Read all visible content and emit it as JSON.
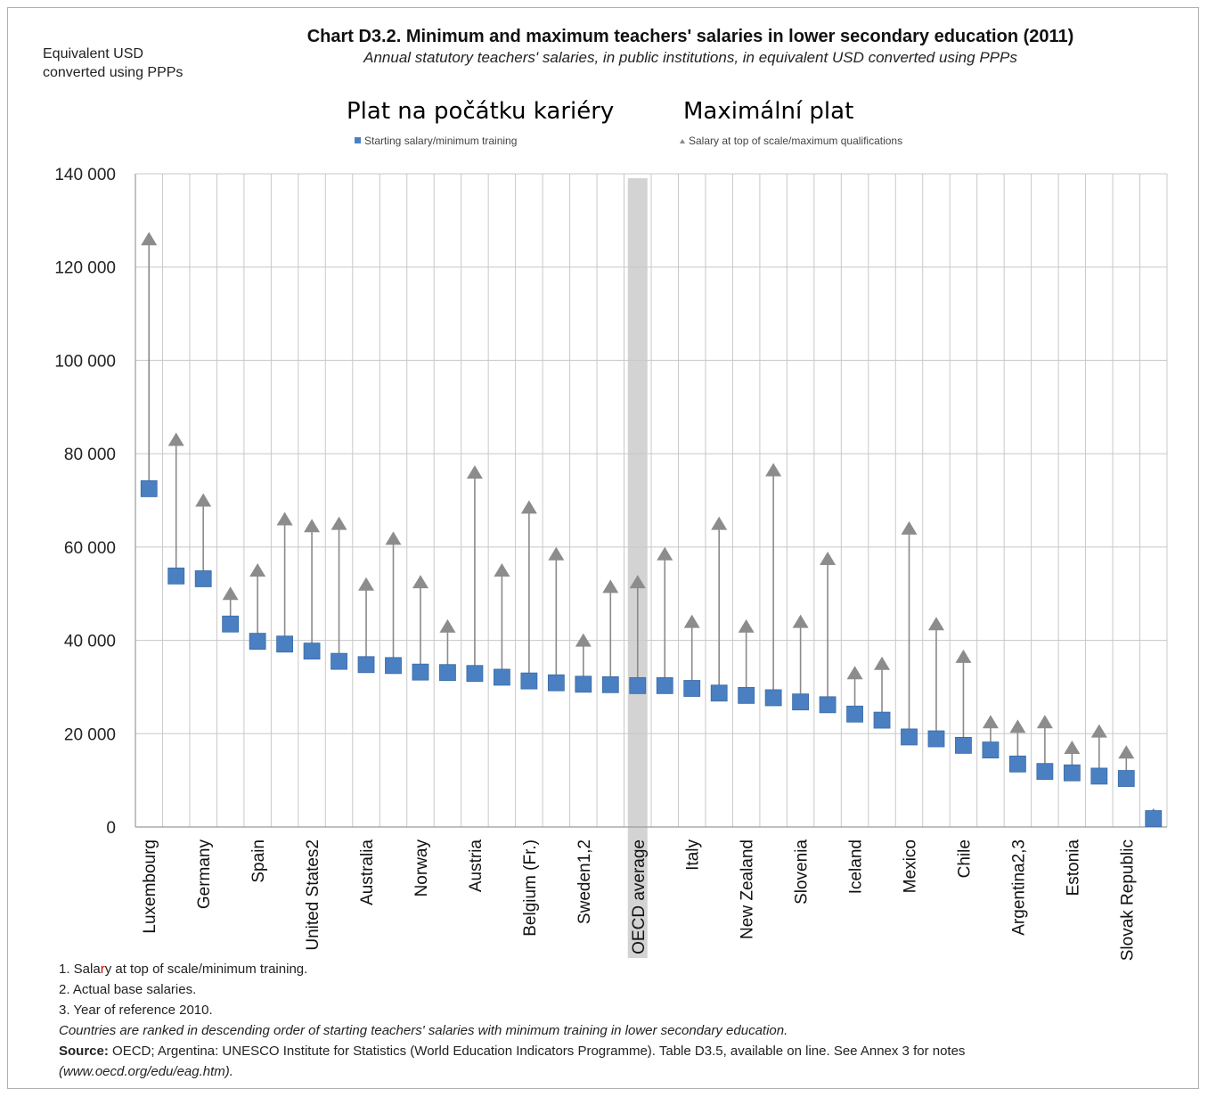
{
  "chart_data": {
    "type": "scatter",
    "title": "Chart D3.2.  Minimum and maximum teachers' salaries in lower secondary education (2011)",
    "subtitle": "Annual statutory teachers' salaries, in public institutions, in equivalent USD converted using PPPs",
    "ylabel": "Equivalent  USD converted using PPPs",
    "annotation_left": "Plat na počátku kariéry",
    "annotation_right": "Maximální plat",
    "ylim": [
      0,
      140000
    ],
    "yticks": [
      "0",
      "20 000",
      "40 000",
      "60 000",
      "80 000",
      "100 000",
      "120 000",
      "140 000"
    ],
    "ytick_values": [
      0,
      20000,
      40000,
      60000,
      80000,
      100000,
      120000,
      140000
    ],
    "grid": true,
    "legend_placement": "top",
    "highlight_category": "OECD average",
    "highlight_color": "#d3d3d3",
    "categories": [
      "Luxembourg",
      "",
      "Germany",
      "",
      "Spain",
      "",
      "United States2",
      "",
      "Australia",
      "",
      "Norway",
      "",
      "Austria",
      "",
      "Belgium (Fr.)",
      "",
      "Sweden1,2",
      "",
      "OECD average",
      "",
      "Italy",
      "",
      "New Zealand",
      "",
      "Slovenia",
      "",
      "Iceland",
      "",
      "Mexico",
      "",
      "Chile",
      "",
      "Argentina2,3",
      "",
      "Estonia",
      "",
      "Slovak Republic",
      ""
    ],
    "series": [
      {
        "name": "Starting salary/minimum training",
        "marker": "square",
        "color": "#4a7fc1",
        "values": [
          72500,
          53800,
          53200,
          43500,
          39800,
          39200,
          37700,
          35500,
          34800,
          34600,
          33200,
          33100,
          32900,
          32100,
          31300,
          30900,
          30600,
          30500,
          30300,
          30300,
          29700,
          28700,
          28200,
          27700,
          26800,
          26200,
          24200,
          22900,
          19300,
          18900,
          17500,
          16500,
          13500,
          11900,
          11600,
          10900,
          10400,
          1800
        ]
      },
      {
        "name": "Salary at top of scale/maximum qualifications",
        "marker": "triangle",
        "color": "#8c8c8c",
        "values": [
          126000,
          83000,
          70000,
          50000,
          55000,
          66000,
          64500,
          65000,
          52000,
          61800,
          52500,
          43000,
          76000,
          55000,
          68500,
          58500,
          40000,
          51500,
          52500,
          58500,
          44000,
          65000,
          43000,
          76500,
          44000,
          57500,
          33000,
          35000,
          64000,
          43500,
          36500,
          22500,
          21500,
          22500,
          17000,
          20500,
          16000,
          2500
        ]
      }
    ]
  },
  "notes": {
    "n1_a": "1. Sala",
    "n1_red": "r",
    "n1_b": "y at top of scale/minimum training.",
    "n2": "2. Actual base salaries.",
    "n3": "3. Year of reference 2010.",
    "ranking": "Countries are ranked in descending order of starting teachers' salaries with minimum training in lower secondary education.",
    "source_label": "Source:",
    "source_text": " OECD; Argentina: UNESCO Institute for Statistics (World Education Indicators Programme). Table D3.5, available on line. See Annex 3 for notes",
    "source_url": "(www.oecd.org/edu/eag.htm)."
  }
}
